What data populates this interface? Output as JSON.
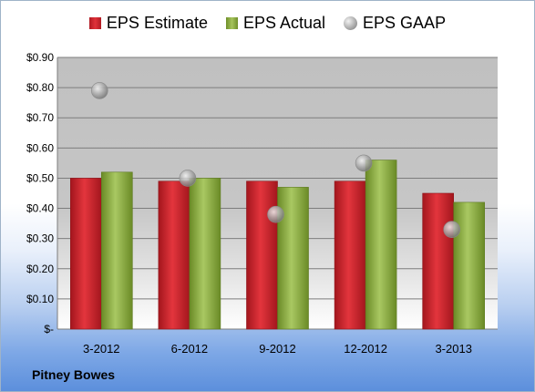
{
  "chart_data": {
    "type": "bar",
    "categories": [
      "3-2012",
      "6-2012",
      "9-2012",
      "12-2012",
      "3-2013"
    ],
    "series": [
      {
        "name": "EPS Estimate",
        "values": [
          0.5,
          0.49,
          0.49,
          0.49,
          0.45
        ],
        "color": "#c8232b"
      },
      {
        "name": "EPS Actual",
        "values": [
          0.52,
          0.5,
          0.47,
          0.56,
          0.42
        ],
        "color": "#8db045"
      },
      {
        "name": "EPS GAAP",
        "values": [
          0.79,
          0.5,
          0.38,
          0.55,
          0.33
        ],
        "color": "#a6a6a6",
        "marker": "circle"
      }
    ],
    "ylim": [
      0,
      0.9
    ],
    "yticks": [
      0,
      0.1,
      0.2,
      0.3,
      0.4,
      0.5,
      0.6,
      0.7,
      0.8,
      0.9
    ],
    "ytick_labels": [
      "$-",
      "$0.10",
      "$0.20",
      "$0.30",
      "$0.40",
      "$0.50",
      "$0.60",
      "$0.70",
      "$0.80",
      "$0.90"
    ],
    "grid": true,
    "legend_position": "top"
  },
  "footer": {
    "company": "Pitney Bowes"
  }
}
